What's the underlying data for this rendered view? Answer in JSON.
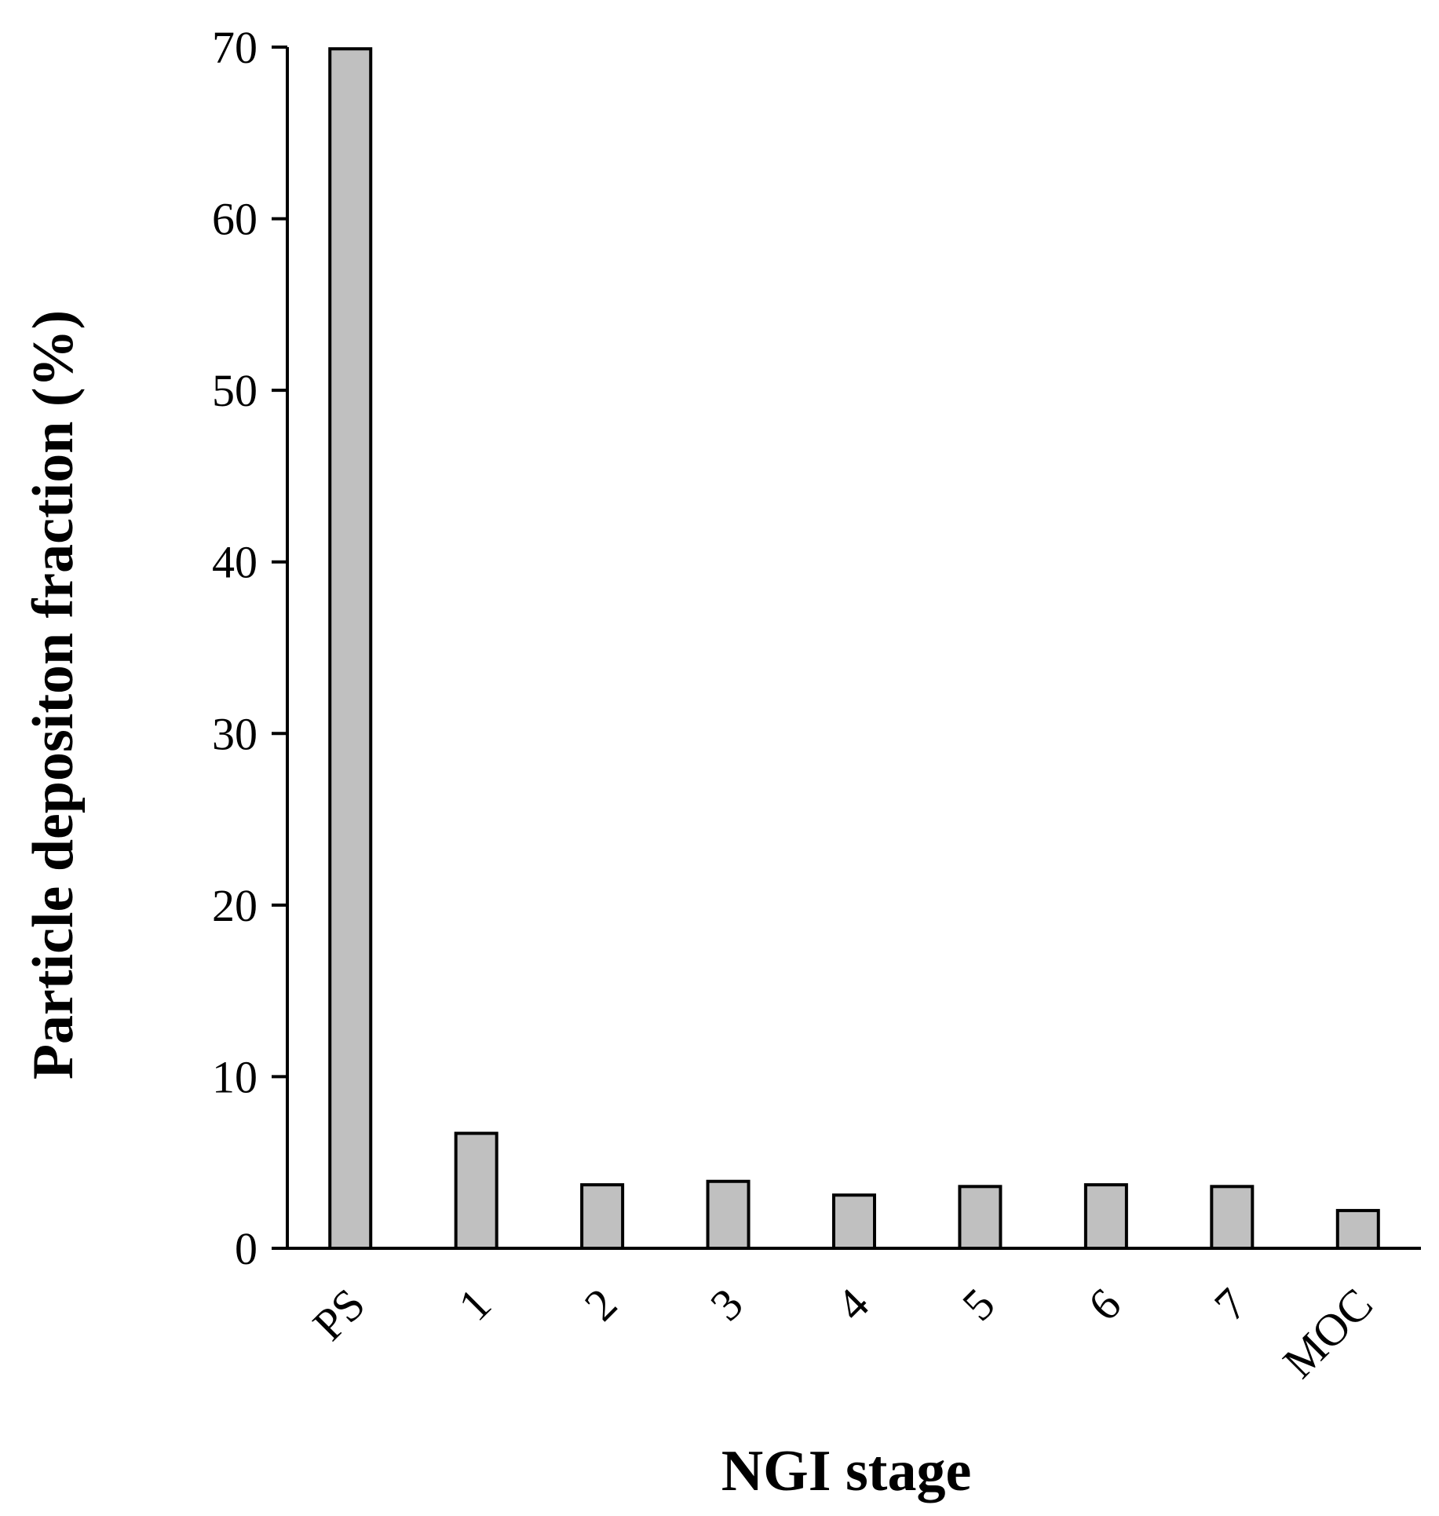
{
  "chart_data": {
    "type": "bar",
    "categories": [
      "PS",
      "1",
      "2",
      "3",
      "4",
      "5",
      "6",
      "7",
      "MOC"
    ],
    "values": [
      69.9,
      6.7,
      3.7,
      3.9,
      3.1,
      3.6,
      3.7,
      3.6,
      2.2
    ],
    "xlabel": "NGI stage",
    "ylabel": "Particle depositon fraction (%)",
    "ylim": [
      0,
      70
    ],
    "yticks": [
      0,
      10,
      20,
      30,
      40,
      50,
      60,
      70
    ],
    "bar_color": "#c0c0c0",
    "grid": false,
    "legend": "none"
  }
}
